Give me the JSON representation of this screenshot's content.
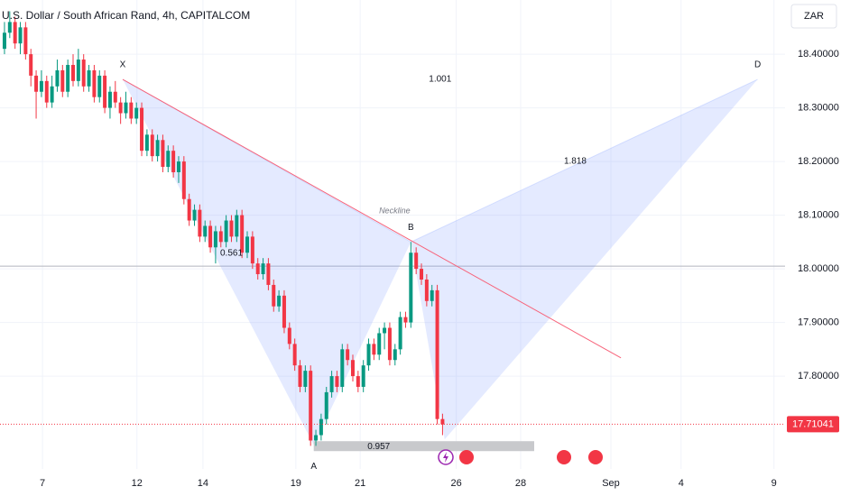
{
  "chart_data": {
    "type": "candlestick",
    "title": "U.S. Dollar / South African Rand, 4h, CAPITALCOM",
    "currency": "ZAR",
    "up_color": "#089981",
    "down_color": "#f23645",
    "open": [
      18.41,
      18.44,
      18.46,
      18.42,
      18.45,
      18.4,
      18.36,
      18.33,
      18.35,
      18.31,
      18.34,
      18.37,
      18.33,
      18.38,
      18.35,
      18.39,
      18.34,
      18.37,
      18.32,
      18.36,
      18.3,
      18.33,
      18.31,
      18.29,
      18.31,
      18.28,
      18.3,
      18.22,
      18.25,
      18.21,
      18.24,
      18.19,
      18.22,
      18.18,
      18.2,
      18.13,
      18.09,
      18.11,
      18.06,
      18.08,
      18.04,
      18.07,
      18.05,
      18.09,
      18.06,
      18.1,
      18.03,
      18.06,
      18.01,
      17.99,
      18.01,
      17.97,
      17.93,
      17.95,
      17.89,
      17.86,
      17.82,
      17.78,
      17.81,
      17.68,
      17.69,
      17.72,
      17.77,
      17.8,
      17.78,
      17.85,
      17.83,
      17.8,
      17.78,
      17.82,
      17.86,
      17.84,
      17.88,
      17.89,
      17.83,
      17.85,
      17.91,
      17.9,
      18.03,
      18.0,
      17.98,
      17.94,
      17.96,
      17.72
    ],
    "high": [
      18.46,
      18.48,
      18.47,
      18.46,
      18.46,
      18.41,
      18.37,
      18.37,
      18.36,
      18.36,
      18.39,
      18.38,
      18.39,
      18.4,
      18.41,
      18.4,
      18.38,
      18.38,
      18.37,
      18.37,
      18.34,
      18.35,
      18.32,
      18.33,
      18.32,
      18.31,
      18.31,
      18.26,
      18.26,
      18.25,
      18.25,
      18.23,
      18.23,
      18.21,
      18.21,
      18.14,
      18.12,
      18.12,
      18.09,
      18.09,
      18.08,
      18.08,
      18.1,
      18.1,
      18.11,
      18.11,
      18.07,
      18.07,
      18.02,
      18.02,
      18.02,
      17.98,
      17.96,
      17.96,
      17.9,
      17.87,
      17.83,
      17.82,
      17.82,
      17.7,
      17.73,
      17.78,
      17.81,
      17.81,
      17.86,
      17.86,
      17.84,
      17.81,
      17.83,
      17.87,
      17.87,
      17.89,
      17.9,
      17.9,
      17.86,
      17.92,
      17.92,
      18.05,
      18.04,
      18.01,
      17.99,
      17.97,
      17.97,
      17.73
    ],
    "low": [
      18.4,
      18.43,
      18.41,
      18.4,
      18.39,
      18.34,
      18.28,
      18.32,
      18.3,
      18.3,
      18.33,
      18.32,
      18.32,
      18.34,
      18.34,
      18.33,
      18.33,
      18.31,
      18.31,
      18.29,
      18.28,
      18.3,
      18.27,
      18.28,
      18.27,
      18.27,
      18.21,
      18.21,
      18.2,
      18.2,
      18.18,
      18.18,
      18.17,
      18.16,
      18.12,
      18.08,
      18.08,
      18.05,
      18.05,
      18.03,
      18.01,
      18.04,
      18.04,
      18.05,
      18.05,
      18.02,
      18.02,
      18.0,
      17.98,
      17.98,
      17.96,
      17.92,
      17.92,
      17.88,
      17.85,
      17.81,
      17.77,
      17.77,
      17.67,
      17.67,
      17.68,
      17.71,
      17.76,
      17.77,
      17.77,
      17.82,
      17.79,
      17.77,
      17.77,
      17.81,
      17.83,
      17.83,
      17.85,
      17.82,
      17.82,
      17.84,
      17.89,
      17.89,
      17.99,
      17.97,
      17.93,
      17.93,
      17.71,
      17.69
    ],
    "close": [
      18.44,
      18.46,
      18.42,
      18.45,
      18.4,
      18.36,
      18.33,
      18.35,
      18.31,
      18.34,
      18.37,
      18.33,
      18.38,
      18.35,
      18.39,
      18.34,
      18.37,
      18.32,
      18.36,
      18.3,
      18.33,
      18.31,
      18.29,
      18.31,
      18.28,
      18.3,
      18.22,
      18.25,
      18.21,
      18.24,
      18.19,
      18.22,
      18.18,
      18.2,
      18.13,
      18.09,
      18.11,
      18.06,
      18.08,
      18.04,
      18.07,
      18.05,
      18.09,
      18.06,
      18.1,
      18.03,
      18.06,
      18.01,
      17.99,
      18.01,
      17.97,
      17.93,
      17.95,
      17.89,
      17.86,
      17.82,
      17.78,
      17.81,
      17.68,
      17.69,
      17.72,
      17.77,
      17.8,
      17.78,
      17.85,
      17.83,
      17.8,
      17.78,
      17.82,
      17.86,
      17.84,
      17.88,
      17.89,
      17.83,
      17.85,
      17.91,
      17.9,
      18.03,
      18.0,
      17.98,
      17.94,
      17.96,
      17.72,
      17.71
    ],
    "xlim": [
      -0.85,
      147.9
    ],
    "xticks": [
      {
        "value": 7.2,
        "label": "7"
      },
      {
        "value": 25.1,
        "label": "12"
      },
      {
        "value": 37.6,
        "label": "14"
      },
      {
        "value": 55.2,
        "label": "19"
      },
      {
        "value": 67.4,
        "label": "21"
      },
      {
        "value": 85.6,
        "label": "26"
      },
      {
        "value": 97.8,
        "label": "28"
      },
      {
        "value": 114.9,
        "label": "Sep"
      },
      {
        "value": 128.2,
        "label": "4"
      },
      {
        "value": 145.8,
        "label": "9"
      }
    ],
    "ylim": [
      17.627,
      18.501
    ],
    "yticks": [
      {
        "value": 18.4,
        "label": "18.40000"
      },
      {
        "value": 18.3,
        "label": "18.30000"
      },
      {
        "value": 18.2,
        "label": "18.20000"
      },
      {
        "value": 18.1,
        "label": "18.10000"
      },
      {
        "value": 18.0,
        "label": "18.00000"
      },
      {
        "value": 17.9,
        "label": "17.90000"
      },
      {
        "value": 17.8,
        "label": "17.80000"
      }
    ],
    "last_price": {
      "value": 17.71041,
      "label": "17.71041"
    },
    "level": 18.005,
    "pattern": {
      "points": [
        {
          "label": "X",
          "x": 22.4,
          "price": 18.353
        },
        {
          "label": "A",
          "x": 58.6,
          "price": 17.672
        },
        {
          "label": "B",
          "x": 77.0,
          "price": 18.05
        },
        {
          "x": 83.4,
          "price": 17.682
        },
        {
          "label": "D",
          "x": 142.7,
          "price": 18.353
        }
      ],
      "ratios": [
        0.561,
        1.001,
        1.818,
        0.957
      ]
    },
    "neckline": {
      "label": "Neckline",
      "x": [
        22.4,
        116.8
      ],
      "price": [
        18.353,
        17.834
      ]
    }
  }
}
